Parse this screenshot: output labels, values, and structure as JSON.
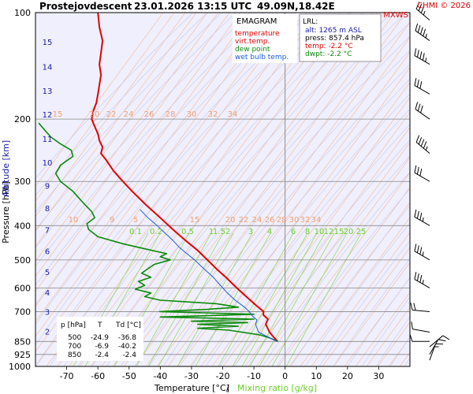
{
  "header": {
    "station": "Prostejov",
    "phase": "descent",
    "datetime": "23.01.2026 13:15 UTC",
    "coords": "49.09N,18.42E",
    "copyright": "CHMI © 2026",
    "wind_source": "MXWS"
  },
  "legend": {
    "title": "EMAGRAM",
    "items": [
      {
        "label": "temperature",
        "color": "#e00000"
      },
      {
        "label": "virt.temp.",
        "color": "#e00000"
      },
      {
        "label": "dew point",
        "color": "#0a8a0a"
      },
      {
        "label": "wet bulb temp.",
        "color": "#1a5adc"
      }
    ]
  },
  "lrl": {
    "heading": "LRL:",
    "alt": "alt: 1265 m ASL",
    "press": "press: 857.4 hPa",
    "temp": "temp: -2.2 °C",
    "dwpt": "dwpt: -2.2 °C",
    "colors": {
      "alt": "#1a1aa8",
      "press": "#000000",
      "temp": "#e00000",
      "dwpt": "#0a8a0a"
    }
  },
  "table": {
    "headers": [
      "p [hPa]",
      "T",
      "Td [°C]"
    ],
    "rows": [
      [
        "500",
        "-24.9",
        "-36.8"
      ],
      [
        "700",
        "-6.9",
        "-40.2"
      ],
      [
        "850",
        "-2.4",
        "-2.4"
      ]
    ]
  },
  "axes": {
    "ylabel_a": "Pressure [hPa]",
    "ylabel_sep": "/",
    "ylabel_b": "Altitude [km]",
    "xlabel_a": "Temperature [°C]",
    "xlabel_sep": "/",
    "xlabel_b": "Mixing ratio [g/kg]"
  },
  "chart_data": {
    "type": "line",
    "title": "Prostejov descent 23.01.2026 13:15 UTC 49.09N,18.42E",
    "y_scale": "log pressure (hPa)",
    "ylim": [
      1000,
      100
    ],
    "xlim": [
      -80,
      40
    ],
    "x_ticks": [
      -70,
      -60,
      -50,
      -40,
      -30,
      -20,
      -10,
      0,
      10,
      20,
      30
    ],
    "pressure_ticks": [
      100,
      200,
      300,
      400,
      500,
      600,
      700,
      850,
      925,
      1000
    ],
    "altitude_km": [
      {
        "km": 2,
        "p": 796
      },
      {
        "km": 3,
        "p": 701
      },
      {
        "km": 4,
        "p": 617
      },
      {
        "km": 5,
        "p": 541
      },
      {
        "km": 6,
        "p": 472
      },
      {
        "km": 7,
        "p": 411
      },
      {
        "km": 8,
        "p": 357
      },
      {
        "km": 9,
        "p": 308
      },
      {
        "km": 10,
        "p": 265
      },
      {
        "km": 11,
        "p": 227
      },
      {
        "km": 12,
        "p": 194
      },
      {
        "km": 13,
        "p": 166
      },
      {
        "km": 14,
        "p": 142
      },
      {
        "km": 15,
        "p": 121
      }
    ],
    "mixing_ratio_labels": [
      "0.1",
      "0.2",
      "0.5",
      "1",
      "1.5",
      "2",
      "3",
      "4",
      "6",
      "8",
      "10",
      "12",
      "15",
      "20",
      "25"
    ],
    "dry_adiabat_labels_200": [
      "15",
      "20",
      "22",
      "24",
      "26",
      "28",
      "30",
      "32",
      "34"
    ],
    "dry_adiabat_labels_400": [
      "10",
      "9",
      "5",
      "15",
      "20",
      "22",
      "24",
      "26",
      "28",
      "30",
      "32",
      "34"
    ],
    "series": [
      {
        "name": "temperature",
        "color": "#e00000",
        "points": [
          [
            850,
            -2.4
          ],
          [
            830,
            -3.5
          ],
          [
            800,
            -5.0
          ],
          [
            760,
            -6.2
          ],
          [
            735,
            -5.5
          ],
          [
            715,
            -7.0
          ],
          [
            700,
            -6.9
          ],
          [
            670,
            -9.5
          ],
          [
            640,
            -12.0
          ],
          [
            600,
            -15.5
          ],
          [
            560,
            -19.0
          ],
          [
            530,
            -22.0
          ],
          [
            500,
            -24.9
          ],
          [
            470,
            -28.0
          ],
          [
            440,
            -32.0
          ],
          [
            410,
            -36.0
          ],
          [
            380,
            -40.0
          ],
          [
            350,
            -44.5
          ],
          [
            320,
            -49.0
          ],
          [
            300,
            -52.0
          ],
          [
            280,
            -55.0
          ],
          [
            260,
            -57.5
          ],
          [
            250,
            -59.0
          ],
          [
            240,
            -58.5
          ],
          [
            230,
            -59.5
          ],
          [
            220,
            -60.0
          ],
          [
            210,
            -61.0
          ],
          [
            200,
            -62.0
          ],
          [
            190,
            -61.5
          ],
          [
            180,
            -60.5
          ],
          [
            170,
            -60.0
          ],
          [
            160,
            -59.5
          ],
          [
            150,
            -59.0
          ],
          [
            140,
            -59.5
          ],
          [
            130,
            -59.0
          ],
          [
            120,
            -58.5
          ],
          [
            110,
            -59.5
          ],
          [
            100,
            -60.0
          ]
        ]
      },
      {
        "name": "dew point",
        "color": "#0a8a0a",
        "points": [
          [
            850,
            -2.4
          ],
          [
            830,
            -5.0
          ],
          [
            815,
            -8.0
          ],
          [
            790,
            -18.0
          ],
          [
            780,
            -28.0
          ],
          [
            770,
            -15.0
          ],
          [
            760,
            -28.0
          ],
          [
            752,
            -12.0
          ],
          [
            745,
            -30.0
          ],
          [
            735,
            -10.0
          ],
          [
            725,
            -40.0
          ],
          [
            712,
            -10.0
          ],
          [
            700,
            -40.2
          ],
          [
            690,
            -25.0
          ],
          [
            680,
            -15.0
          ],
          [
            665,
            -22.0
          ],
          [
            650,
            -40.0
          ],
          [
            635,
            -45.0
          ],
          [
            620,
            -43.0
          ],
          [
            605,
            -48.0
          ],
          [
            590,
            -45.0
          ],
          [
            575,
            -47.0
          ],
          [
            560,
            -43.0
          ],
          [
            545,
            -46.0
          ],
          [
            530,
            -44.0
          ],
          [
            515,
            -42.0
          ],
          [
            500,
            -36.8
          ],
          [
            490,
            -40.0
          ],
          [
            480,
            -38.0
          ],
          [
            465,
            -45.0
          ],
          [
            450,
            -52.0
          ],
          [
            430,
            -60.0
          ],
          [
            410,
            -63.0
          ],
          [
            395,
            -63.5
          ],
          [
            380,
            -61.0
          ],
          [
            365,
            -62.0
          ],
          [
            350,
            -64.0
          ],
          [
            335,
            -66.0
          ],
          [
            320,
            -68.0
          ],
          [
            300,
            -72.0
          ],
          [
            285,
            -73.5
          ],
          [
            270,
            -72.0
          ],
          [
            255,
            -68.0
          ],
          [
            245,
            -68.5
          ],
          [
            235,
            -72.0
          ],
          [
            225,
            -75.0
          ],
          [
            215,
            -77.0
          ],
          [
            205,
            -79.0
          ]
        ]
      },
      {
        "name": "wet bulb temp.",
        "color": "#1a5adc",
        "points": [
          [
            850,
            -2.4
          ],
          [
            830,
            -5.0
          ],
          [
            800,
            -8.5
          ],
          [
            760,
            -9.5
          ],
          [
            740,
            -9.0
          ],
          [
            720,
            -10.5
          ],
          [
            700,
            -11.5
          ],
          [
            680,
            -13.0
          ],
          [
            650,
            -16.0
          ],
          [
            620,
            -18.5
          ],
          [
            600,
            -20.0
          ],
          [
            580,
            -21.5
          ],
          [
            560,
            -23.0
          ],
          [
            540,
            -25.0
          ],
          [
            520,
            -27.0
          ],
          [
            500,
            -29.0
          ],
          [
            480,
            -31.5
          ],
          [
            460,
            -34.0
          ],
          [
            440,
            -36.0
          ],
          [
            420,
            -38.5
          ],
          [
            400,
            -41.0
          ],
          [
            380,
            -44.0
          ],
          [
            360,
            -46.5
          ]
        ]
      }
    ],
    "wind_profile": [
      {
        "p": 960,
        "dir": 20,
        "spd": 5
      },
      {
        "p": 925,
        "dir": 30,
        "spd": 10
      },
      {
        "p": 880,
        "dir": 50,
        "spd": 10
      },
      {
        "p": 850,
        "dir": 270,
        "spd": 10
      },
      {
        "p": 800,
        "dir": 280,
        "spd": 10
      },
      {
        "p": 700,
        "dir": 275,
        "spd": 20
      },
      {
        "p": 600,
        "dir": 300,
        "spd": 25
      },
      {
        "p": 500,
        "dir": 300,
        "spd": 25
      },
      {
        "p": 400,
        "dir": 300,
        "spd": 25
      },
      {
        "p": 300,
        "dir": 300,
        "spd": 30
      },
      {
        "p": 250,
        "dir": 310,
        "spd": 35
      },
      {
        "p": 200,
        "dir": 305,
        "spd": 30
      },
      {
        "p": 170,
        "dir": 300,
        "spd": 30
      },
      {
        "p": 140,
        "dir": 300,
        "spd": 35
      },
      {
        "p": 120,
        "dir": 305,
        "spd": 35
      },
      {
        "p": 105,
        "dir": 310,
        "spd": 25
      }
    ],
    "grid": true,
    "legend_position": "top-right"
  }
}
